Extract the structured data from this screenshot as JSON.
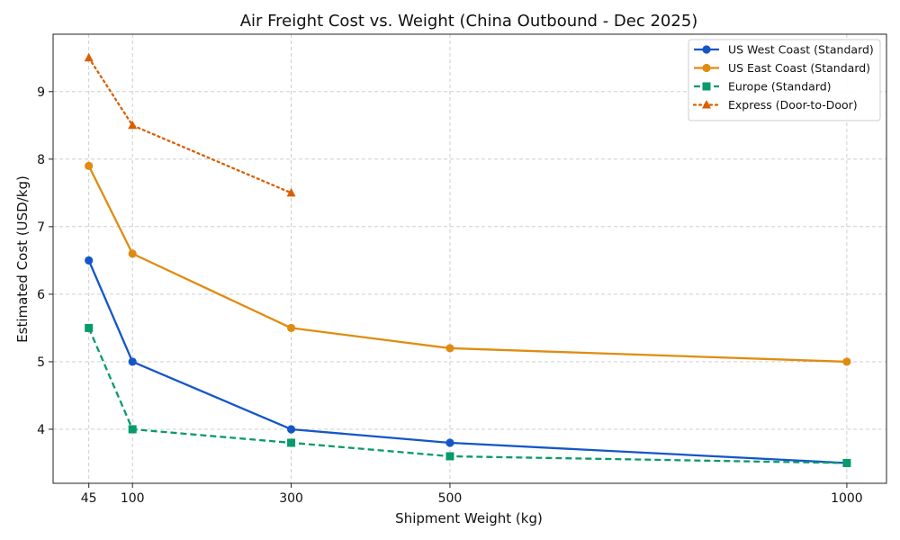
{
  "chart_data": {
    "type": "line",
    "title": "Air Freight Cost vs. Weight (China Outbound - Dec 2025)",
    "xlabel": "Shipment Weight (kg)",
    "ylabel": "Estimated Cost (USD/kg)",
    "xlim": [
      0,
      1050
    ],
    "ylim": [
      3.2,
      9.85
    ],
    "xticks": [
      45,
      100,
      300,
      500,
      1000
    ],
    "yticks": [
      4,
      5,
      6,
      7,
      8,
      9
    ],
    "grid": true,
    "legend_position": "top-right",
    "series": [
      {
        "name": "US West Coast (Standard)",
        "color": "#1456c8",
        "marker": "circle",
        "linestyle": "solid",
        "x": [
          45,
          100,
          300,
          500,
          1000
        ],
        "y": [
          6.5,
          5.0,
          4.0,
          3.8,
          3.5
        ]
      },
      {
        "name": "US East Coast (Standard)",
        "color": "#e08c10",
        "marker": "circle",
        "linestyle": "solid",
        "x": [
          45,
          100,
          300,
          500,
          1000
        ],
        "y": [
          7.9,
          6.6,
          5.5,
          5.2,
          5.0
        ]
      },
      {
        "name": "Europe (Standard)",
        "color": "#079a6a",
        "marker": "square",
        "linestyle": "dashed",
        "x": [
          45,
          100,
          300,
          500,
          1000
        ],
        "y": [
          5.5,
          4.0,
          3.8,
          3.6,
          3.5
        ]
      },
      {
        "name": "Express (Door-to-Door)",
        "color": "#d95f02",
        "marker": "triangle",
        "linestyle": "dotted",
        "x": [
          45,
          100,
          300
        ],
        "y": [
          9.5,
          8.5,
          7.5
        ]
      }
    ]
  }
}
